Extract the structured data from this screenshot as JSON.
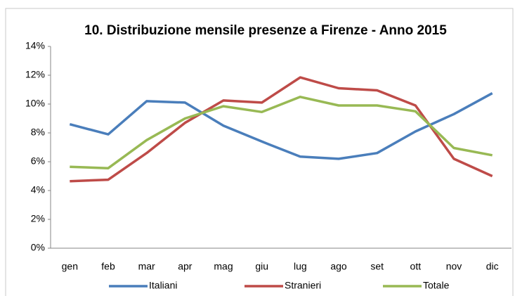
{
  "chart_data": {
    "type": "line",
    "title": "10. Distribuzione mensile presenze a Firenze - Anno 2015",
    "categories": [
      "gen",
      "feb",
      "mar",
      "apr",
      "mag",
      "giu",
      "lug",
      "ago",
      "set",
      "ott",
      "nov",
      "dic"
    ],
    "series": [
      {
        "name": "Italiani",
        "color": "#4a7ebb",
        "values": [
          8.6,
          7.9,
          10.2,
          10.1,
          8.5,
          7.4,
          6.35,
          6.2,
          6.6,
          8.1,
          9.3,
          10.75
        ]
      },
      {
        "name": "Stranieri",
        "color": "#be4b48",
        "values": [
          4.65,
          4.75,
          6.6,
          8.7,
          10.25,
          10.1,
          11.85,
          11.1,
          10.95,
          9.9,
          6.2,
          5.0
        ]
      },
      {
        "name": "Totale",
        "color": "#98b954",
        "values": [
          5.65,
          5.55,
          7.5,
          9.0,
          9.85,
          9.45,
          10.5,
          9.9,
          9.9,
          9.5,
          6.95,
          6.45
        ]
      }
    ],
    "ylim": [
      0,
      14
    ],
    "yticks": [
      {
        "value": 0,
        "label": "0%"
      },
      {
        "value": 2,
        "label": "2%"
      },
      {
        "value": 4,
        "label": "4%"
      },
      {
        "value": 6,
        "label": "6%"
      },
      {
        "value": 8,
        "label": "8%"
      },
      {
        "value": 10,
        "label": "10%"
      },
      {
        "value": 12,
        "label": "12%"
      },
      {
        "value": 14,
        "label": "14%"
      }
    ],
    "grid": false,
    "legend": "bottom"
  }
}
